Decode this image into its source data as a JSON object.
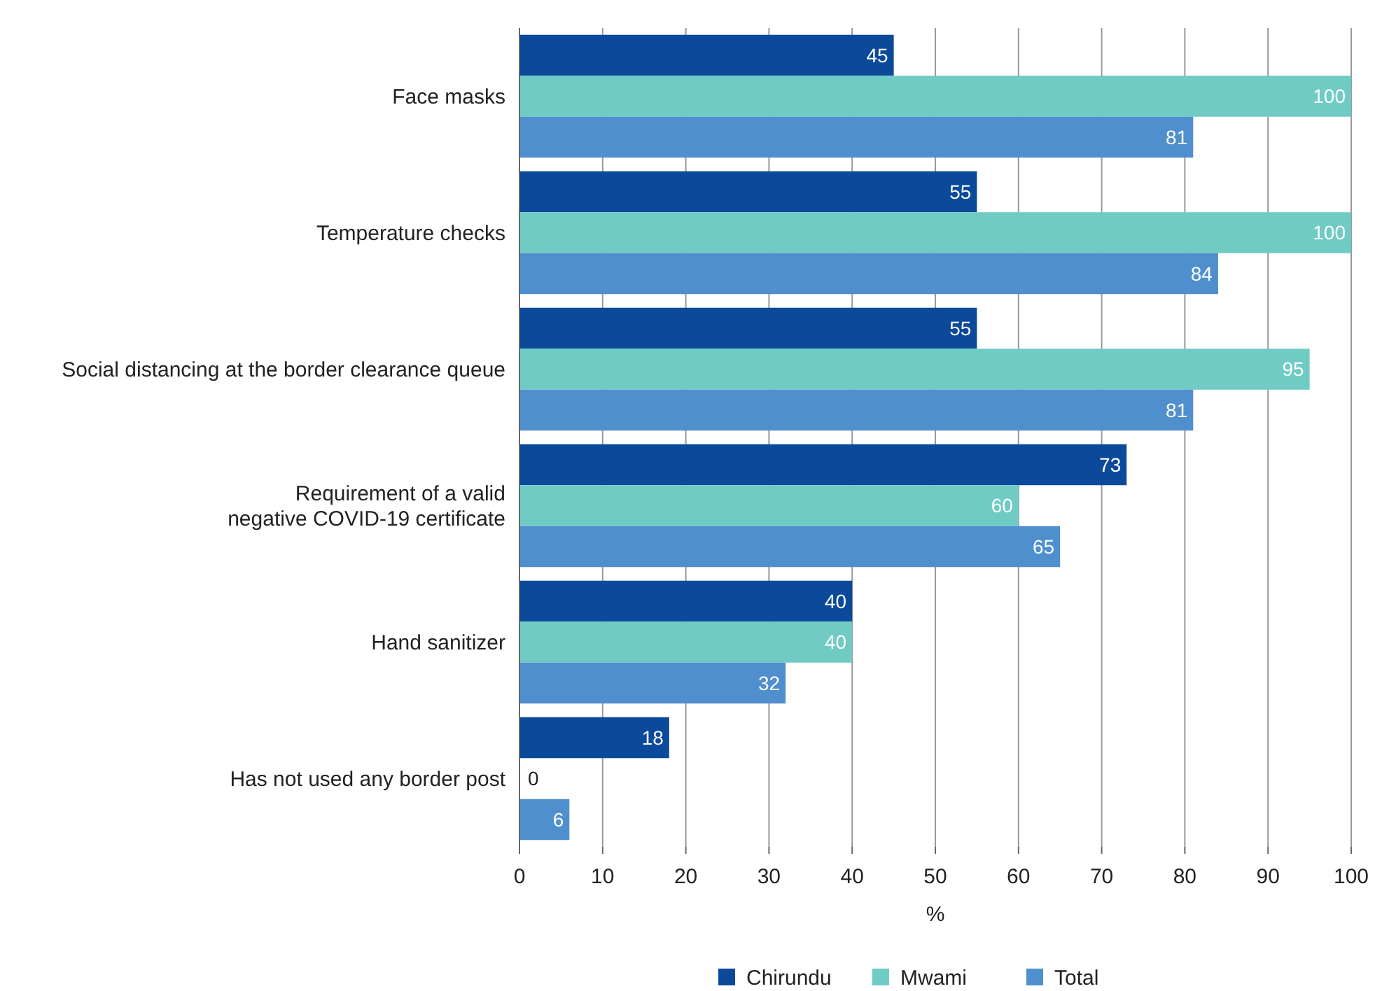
{
  "chart_data": {
    "type": "bar",
    "orientation": "horizontal",
    "xlabel": "%",
    "categories": [
      "Face masks",
      "Temperature checks",
      "Social distancing at the border clearance queue",
      "Requirement of a valid\nnegative COVID-19 certificate",
      "Hand sanitizer",
      "Has not used any border post"
    ],
    "series": [
      {
        "name": "Chirundu",
        "color": "#0b4a9b",
        "values": [
          45,
          55,
          55,
          73,
          40,
          18
        ]
      },
      {
        "name": "Mwami",
        "color": "#6fcbc4",
        "values": [
          100,
          100,
          95,
          60,
          40,
          0
        ]
      },
      {
        "name": "Total",
        "color": "#4f8fce",
        "values": [
          81,
          84,
          81,
          65,
          32,
          6
        ]
      }
    ],
    "xlim": [
      0,
      100
    ],
    "xticks": [
      0,
      10,
      20,
      30,
      40,
      50,
      60,
      70,
      80,
      90,
      100
    ],
    "grid": "x",
    "data_labels": true,
    "legend": "bottom"
  }
}
